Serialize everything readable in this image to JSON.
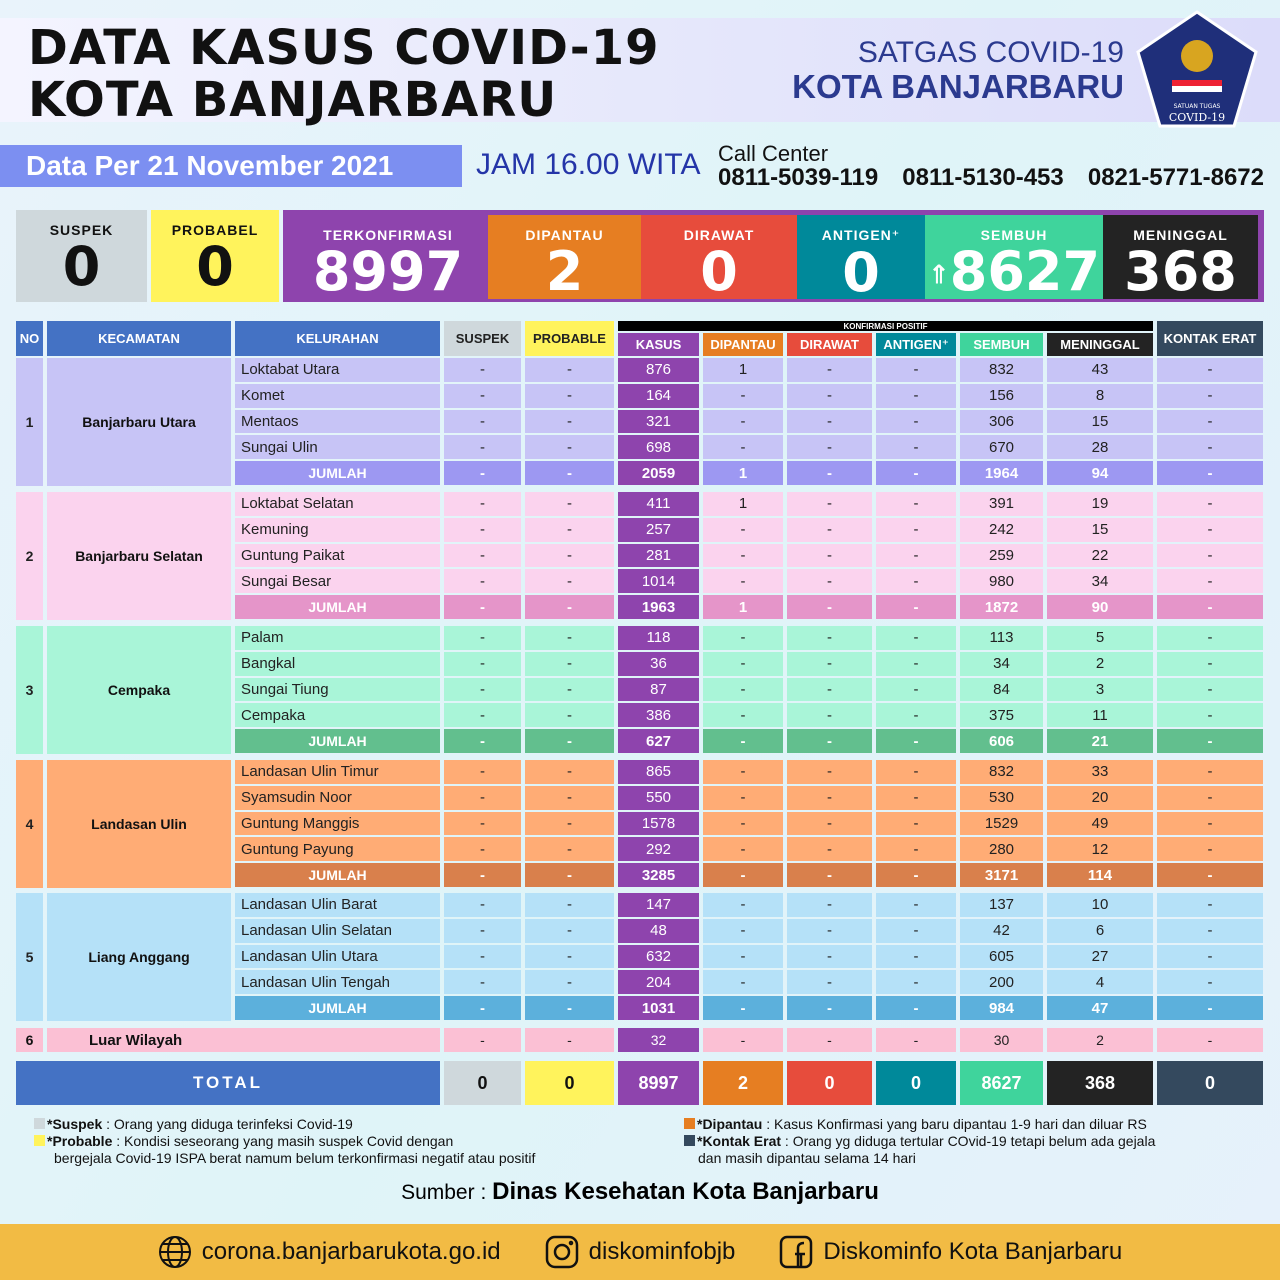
{
  "header": {
    "title_line1": "DATA KASUS COVID-19",
    "title_line2": "KOTA BANJARBARU",
    "org_line1": "SATGAS COVID-19",
    "org_line2": "KOTA BANJARBARU",
    "logo_text": "SATUAN TUGAS PENANGANAN COVID-19",
    "date": "Data Per 21 November 2021",
    "time": "JAM 16.00 WITA",
    "call_center_label": "Call Center",
    "phones": [
      "0811-5039-119",
      "0811-5130-453",
      "0821-5771-8672"
    ]
  },
  "summary": [
    {
      "label": "SUSPEK",
      "value": "0",
      "color": "#cfd8dc",
      "text": "#111"
    },
    {
      "label": "PROBABEL",
      "value": "0",
      "color": "#fff35c",
      "text": "#111"
    },
    {
      "label": "TERKONFIRMASI",
      "value": "8997",
      "color": "#8e44ad",
      "text": "#fff"
    },
    {
      "label": "DIPANTAU",
      "value": "2",
      "color": "#e67e22",
      "text": "#fff"
    },
    {
      "label": "DIRAWAT",
      "value": "0",
      "color": "#e74c3c",
      "text": "#fff"
    },
    {
      "label": "ANTIGEN⁺",
      "value": "0",
      "color": "#00899a",
      "text": "#fff"
    },
    {
      "label": "SEMBUH",
      "value": "8627",
      "color": "#3fd49c",
      "text": "#fff",
      "icon": "arrow-up-icon"
    },
    {
      "label": "MENINGGAL",
      "value": "368",
      "color": "#232323",
      "text": "#fff"
    }
  ],
  "table": {
    "group_header": "KONFIRMASI POSITIF",
    "columns": [
      "NO",
      "KECAMATAN",
      "KELURAHAN",
      "SUSPEK",
      "PROBABLE",
      "KASUS",
      "DIPANTAU",
      "DIRAWAT",
      "ANTIGEN⁺",
      "SEMBUH",
      "MENINGGAL",
      "KONTAK ERAT"
    ],
    "column_colors": [
      "#4472c4",
      "#4472c4",
      "#4472c4",
      "#cfd8dc",
      "#fff35c",
      "#8e44ad",
      "#e67e22",
      "#e74c3c",
      "#00899a",
      "#3fd49c",
      "#232323",
      "#34495e"
    ],
    "jumlah_label": "JUMLAH",
    "groups": [
      {
        "no": "1",
        "kecamatan": "Banjarbaru Utara",
        "color": "#c7c4f6",
        "jumlah_color": "#9d98f2",
        "rows": [
          [
            "Loktabat Utara",
            "-",
            "-",
            "876",
            "1",
            "-",
            "-",
            "832",
            "43",
            "-"
          ],
          [
            "Komet",
            "-",
            "-",
            "164",
            "-",
            "-",
            "-",
            "156",
            "8",
            "-"
          ],
          [
            "Mentaos",
            "-",
            "-",
            "321",
            "-",
            "-",
            "-",
            "306",
            "15",
            "-"
          ],
          [
            "Sungai Ulin",
            "-",
            "-",
            "698",
            "-",
            "-",
            "-",
            "670",
            "28",
            "-"
          ]
        ],
        "jumlah": [
          "-",
          "-",
          "2059",
          "1",
          "-",
          "-",
          "1964",
          "94",
          "-"
        ]
      },
      {
        "no": "2",
        "kecamatan": "Banjarbaru Selatan",
        "color": "#fbd3ee",
        "jumlah_color": "#e595c9",
        "rows": [
          [
            "Loktabat Selatan",
            "-",
            "-",
            "411",
            "1",
            "-",
            "-",
            "391",
            "19",
            "-"
          ],
          [
            "Kemuning",
            "-",
            "-",
            "257",
            "-",
            "-",
            "-",
            "242",
            "15",
            "-"
          ],
          [
            "Guntung Paikat",
            "-",
            "-",
            "281",
            "-",
            "-",
            "-",
            "259",
            "22",
            "-"
          ],
          [
            "Sungai Besar",
            "-",
            "-",
            "1014",
            "-",
            "-",
            "-",
            "980",
            "34",
            "-"
          ]
        ],
        "jumlah": [
          "-",
          "-",
          "1963",
          "1",
          "-",
          "-",
          "1872",
          "90",
          "-"
        ]
      },
      {
        "no": "3",
        "kecamatan": "Cempaka",
        "color": "#a9f5d8",
        "jumlah_color": "#62bf8e",
        "rows": [
          [
            "Palam",
            "-",
            "-",
            "118",
            "-",
            "-",
            "-",
            "113",
            "5",
            "-"
          ],
          [
            "Bangkal",
            "-",
            "-",
            "36",
            "-",
            "-",
            "-",
            "34",
            "2",
            "-"
          ],
          [
            "Sungai Tiung",
            "-",
            "-",
            "87",
            "-",
            "-",
            "-",
            "84",
            "3",
            "-"
          ],
          [
            "Cempaka",
            "-",
            "-",
            "386",
            "-",
            "-",
            "-",
            "375",
            "11",
            "-"
          ]
        ],
        "jumlah": [
          "-",
          "-",
          "627",
          "-",
          "-",
          "-",
          "606",
          "21",
          "-"
        ]
      },
      {
        "no": "4",
        "kecamatan": "Landasan Ulin",
        "color": "#ffac75",
        "jumlah_color": "#d9804c",
        "rows": [
          [
            "Landasan Ulin Timur",
            "-",
            "-",
            "865",
            "-",
            "-",
            "-",
            "832",
            "33",
            "-"
          ],
          [
            "Syamsudin Noor",
            "-",
            "-",
            "550",
            "-",
            "-",
            "-",
            "530",
            "20",
            "-"
          ],
          [
            "Guntung Manggis",
            "-",
            "-",
            "1578",
            "-",
            "-",
            "-",
            "1529",
            "49",
            "-"
          ],
          [
            "Guntung Payung",
            "-",
            "-",
            "292",
            "-",
            "-",
            "-",
            "280",
            "12",
            "-"
          ]
        ],
        "jumlah": [
          "-",
          "-",
          "3285",
          "-",
          "-",
          "-",
          "3171",
          "114",
          "-"
        ]
      },
      {
        "no": "5",
        "kecamatan": "Liang Anggang",
        "color": "#b5e1f8",
        "jumlah_color": "#5cb0dc",
        "rows": [
          [
            "Landasan Ulin Barat",
            "-",
            "-",
            "147",
            "-",
            "-",
            "-",
            "137",
            "10",
            "-"
          ],
          [
            "Landasan Ulin Selatan",
            "-",
            "-",
            "48",
            "-",
            "-",
            "-",
            "42",
            "6",
            "-"
          ],
          [
            "Landasan Ulin Utara",
            "-",
            "-",
            "632",
            "-",
            "-",
            "-",
            "605",
            "27",
            "-"
          ],
          [
            "Landasan Ulin Tengah",
            "-",
            "-",
            "204",
            "-",
            "-",
            "-",
            "200",
            "4",
            "-"
          ]
        ],
        "jumlah": [
          "-",
          "-",
          "1031",
          "-",
          "-",
          "-",
          "984",
          "47",
          "-"
        ]
      }
    ],
    "luar": {
      "no": "6",
      "name": "Luar Wilayah",
      "color": "#fbc0d4",
      "values": [
        "-",
        "-",
        "32",
        "-",
        "-",
        "-",
        "30",
        "2",
        "-"
      ]
    },
    "total": {
      "label": "TOTAL",
      "values": [
        "0",
        "0",
        "8997",
        "2",
        "0",
        "0",
        "8627",
        "368",
        "0"
      ]
    }
  },
  "legend": {
    "suspek_term": "*Suspek",
    "suspek_def": ": Orang yang diduga terinfeksi Covid-19",
    "probable_term": "*Probable",
    "probable_def": ": Kondisi seseorang yang masih suspek Covid dengan",
    "probable_def2": "bergejala Covid-19 ISPA berat namum belum terkonfirmasi negatif atau positif",
    "dipantau_term": "*Dipantau",
    "dipantau_def": ": Kasus Konfirmasi yang baru dipantau 1-9 hari dan diluar RS",
    "kontak_term": "*Kontak Erat",
    "kontak_def": ": Orang yg diduga tertular COvid-19 tetapi belum ada gejala",
    "kontak_def2": "dan masih dipantau selama 14 hari"
  },
  "source": {
    "label": "Sumber :",
    "value": "Dinas Kesehatan Kota Banjarbaru"
  },
  "footer": {
    "website": "corona.banjarbarukota.go.id",
    "instagram": "diskominfobjb",
    "facebook": "Diskominfo Kota Banjarbaru"
  }
}
